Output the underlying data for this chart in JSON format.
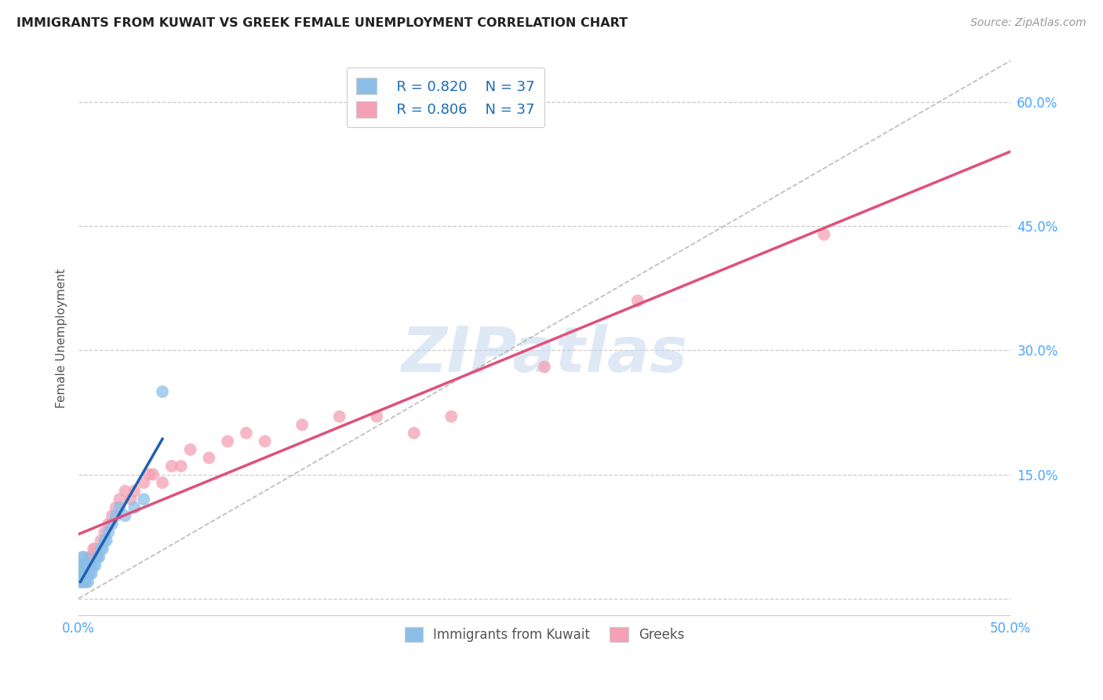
{
  "title": "IMMIGRANTS FROM KUWAIT VS GREEK FEMALE UNEMPLOYMENT CORRELATION CHART",
  "source": "Source: ZipAtlas.com",
  "tick_color": "#4da6ff",
  "ylabel": "Female Unemployment",
  "xlim": [
    0.0,
    0.5
  ],
  "ylim": [
    -0.02,
    0.65
  ],
  "x_ticks": [
    0.0,
    0.1,
    0.2,
    0.3,
    0.4,
    0.5
  ],
  "x_tick_labels": [
    "0.0%",
    "",
    "",
    "",
    "",
    "50.0%"
  ],
  "y_ticks": [
    0.0,
    0.15,
    0.3,
    0.45,
    0.6
  ],
  "y_tick_labels": [
    "",
    "15.0%",
    "30.0%",
    "45.0%",
    "60.0%"
  ],
  "grid_color": "#cccccc",
  "background_color": "#ffffff",
  "watermark_text": "ZIPatlas",
  "legend_r1": "R = 0.820",
  "legend_n1": "N = 37",
  "legend_r2": "R = 0.806",
  "legend_n2": "N = 37",
  "legend_label1": "Immigrants from Kuwait",
  "legend_label2": "Greeks",
  "blue_color": "#8bbfe8",
  "pink_color": "#f4a0b5",
  "blue_line_color": "#2060b0",
  "pink_line_color": "#e0507a",
  "ref_line_color": "#bbbbbb",
  "kuwait_x": [
    0.001,
    0.001,
    0.001,
    0.002,
    0.002,
    0.002,
    0.002,
    0.003,
    0.003,
    0.003,
    0.003,
    0.004,
    0.004,
    0.004,
    0.005,
    0.005,
    0.005,
    0.006,
    0.006,
    0.007,
    0.007,
    0.008,
    0.009,
    0.01,
    0.011,
    0.012,
    0.013,
    0.014,
    0.015,
    0.016,
    0.018,
    0.02,
    0.022,
    0.025,
    0.03,
    0.035,
    0.045
  ],
  "kuwait_y": [
    0.02,
    0.03,
    0.04,
    0.02,
    0.03,
    0.04,
    0.05,
    0.02,
    0.03,
    0.04,
    0.05,
    0.02,
    0.03,
    0.04,
    0.02,
    0.03,
    0.04,
    0.03,
    0.04,
    0.03,
    0.04,
    0.04,
    0.04,
    0.05,
    0.05,
    0.06,
    0.06,
    0.07,
    0.07,
    0.08,
    0.09,
    0.1,
    0.11,
    0.1,
    0.11,
    0.12,
    0.25
  ],
  "greek_x": [
    0.002,
    0.003,
    0.004,
    0.005,
    0.006,
    0.007,
    0.008,
    0.009,
    0.01,
    0.012,
    0.014,
    0.016,
    0.018,
    0.02,
    0.022,
    0.025,
    0.028,
    0.03,
    0.035,
    0.038,
    0.04,
    0.045,
    0.05,
    0.055,
    0.06,
    0.07,
    0.08,
    0.09,
    0.1,
    0.12,
    0.14,
    0.16,
    0.18,
    0.2,
    0.25,
    0.3,
    0.4
  ],
  "greek_y": [
    0.02,
    0.03,
    0.04,
    0.04,
    0.05,
    0.05,
    0.06,
    0.06,
    0.05,
    0.07,
    0.08,
    0.09,
    0.1,
    0.11,
    0.12,
    0.13,
    0.12,
    0.13,
    0.14,
    0.15,
    0.15,
    0.14,
    0.16,
    0.16,
    0.18,
    0.17,
    0.19,
    0.2,
    0.19,
    0.21,
    0.22,
    0.22,
    0.2,
    0.22,
    0.28,
    0.36,
    0.44
  ]
}
